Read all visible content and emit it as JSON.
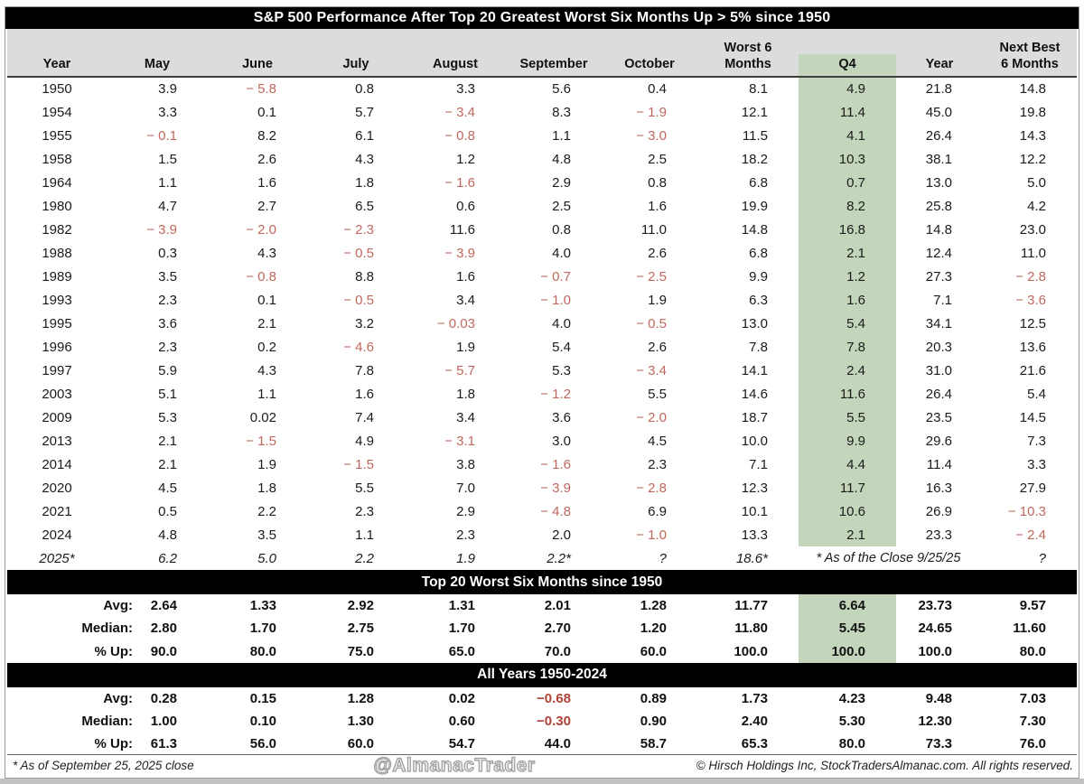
{
  "chart_data": {
    "type": "table",
    "title": "S&P 500 Performance After Top 20 Greatest Worst Six Months Up > 5% since 1950",
    "columns": [
      "Year",
      "May",
      "June",
      "July",
      "August",
      "September",
      "October",
      "Worst 6\nMonths",
      "Q4",
      "Year",
      "Next Best\n6 Months"
    ],
    "highlight_column": "Q4",
    "rows": [
      {
        "year": "1950",
        "values": [
          "3.9",
          "− 5.8",
          "0.8",
          "3.3",
          "5.6",
          "0.4",
          "8.1",
          "4.9",
          "21.8",
          "14.8"
        ]
      },
      {
        "year": "1954",
        "values": [
          "3.3",
          "0.1",
          "5.7",
          "− 3.4",
          "8.3",
          "− 1.9",
          "12.1",
          "11.4",
          "45.0",
          "19.8"
        ]
      },
      {
        "year": "1955",
        "values": [
          "− 0.1",
          "8.2",
          "6.1",
          "− 0.8",
          "1.1",
          "− 3.0",
          "11.5",
          "4.1",
          "26.4",
          "14.3"
        ]
      },
      {
        "year": "1958",
        "values": [
          "1.5",
          "2.6",
          "4.3",
          "1.2",
          "4.8",
          "2.5",
          "18.2",
          "10.3",
          "38.1",
          "12.2"
        ]
      },
      {
        "year": "1964",
        "values": [
          "1.1",
          "1.6",
          "1.8",
          "− 1.6",
          "2.9",
          "0.8",
          "6.8",
          "0.7",
          "13.0",
          "5.0"
        ]
      },
      {
        "year": "1980",
        "values": [
          "4.7",
          "2.7",
          "6.5",
          "0.6",
          "2.5",
          "1.6",
          "19.9",
          "8.2",
          "25.8",
          "4.2"
        ]
      },
      {
        "year": "1982",
        "values": [
          "− 3.9",
          "− 2.0",
          "− 2.3",
          "11.6",
          "0.8",
          "11.0",
          "14.8",
          "16.8",
          "14.8",
          "23.0"
        ]
      },
      {
        "year": "1988",
        "values": [
          "0.3",
          "4.3",
          "− 0.5",
          "− 3.9",
          "4.0",
          "2.6",
          "6.8",
          "2.1",
          "12.4",
          "11.0"
        ]
      },
      {
        "year": "1989",
        "values": [
          "3.5",
          "− 0.8",
          "8.8",
          "1.6",
          "− 0.7",
          "− 2.5",
          "9.9",
          "1.2",
          "27.3",
          "− 2.8"
        ]
      },
      {
        "year": "1993",
        "values": [
          "2.3",
          "0.1",
          "− 0.5",
          "3.4",
          "− 1.0",
          "1.9",
          "6.3",
          "1.6",
          "7.1",
          "− 3.6"
        ]
      },
      {
        "year": "1995",
        "values": [
          "3.6",
          "2.1",
          "3.2",
          "− 0.03",
          "4.0",
          "− 0.5",
          "13.0",
          "5.4",
          "34.1",
          "12.5"
        ]
      },
      {
        "year": "1996",
        "values": [
          "2.3",
          "0.2",
          "− 4.6",
          "1.9",
          "5.4",
          "2.6",
          "7.8",
          "7.8",
          "20.3",
          "13.6"
        ]
      },
      {
        "year": "1997",
        "values": [
          "5.9",
          "4.3",
          "7.8",
          "− 5.7",
          "5.3",
          "− 3.4",
          "14.1",
          "2.4",
          "31.0",
          "21.6"
        ]
      },
      {
        "year": "2003",
        "values": [
          "5.1",
          "1.1",
          "1.6",
          "1.8",
          "− 1.2",
          "5.5",
          "14.6",
          "11.6",
          "26.4",
          "5.4"
        ]
      },
      {
        "year": "2009",
        "values": [
          "5.3",
          "0.02",
          "7.4",
          "3.4",
          "3.6",
          "− 2.0",
          "18.7",
          "5.5",
          "23.5",
          "14.5"
        ]
      },
      {
        "year": "2013",
        "values": [
          "2.1",
          "− 1.5",
          "4.9",
          "− 3.1",
          "3.0",
          "4.5",
          "10.0",
          "9.9",
          "29.6",
          "7.3"
        ]
      },
      {
        "year": "2014",
        "values": [
          "2.1",
          "1.9",
          "− 1.5",
          "3.8",
          "− 1.6",
          "2.3",
          "7.1",
          "4.4",
          "11.4",
          "3.3"
        ]
      },
      {
        "year": "2020",
        "values": [
          "4.5",
          "1.8",
          "5.5",
          "7.0",
          "− 3.9",
          "− 2.8",
          "12.3",
          "11.7",
          "16.3",
          "27.9"
        ]
      },
      {
        "year": "2021",
        "values": [
          "0.5",
          "2.2",
          "2.3",
          "2.9",
          "− 4.8",
          "6.9",
          "10.1",
          "10.6",
          "26.9",
          "− 10.3"
        ]
      },
      {
        "year": "2024",
        "values": [
          "4.8",
          "3.5",
          "1.1",
          "2.3",
          "2.0",
          "− 1.0",
          "13.3",
          "2.1",
          "23.3",
          "− 2.4"
        ]
      },
      {
        "year": "2025*",
        "italic": true,
        "values": [
          "6.2",
          "5.0",
          "2.2",
          "1.9",
          "2.2*",
          "?",
          "18.6*"
        ],
        "note": "* As of the Close 9/25/25",
        "last": "?"
      }
    ],
    "sections": [
      {
        "band": "Top 20 Worst Six Months since 1950",
        "highlight_q4": true,
        "rows": [
          {
            "label": "Avg:",
            "values": [
              "2.64",
              "1.33",
              "2.92",
              "1.31",
              "2.01",
              "1.28",
              "11.77",
              "6.64",
              "23.73",
              "9.57"
            ]
          },
          {
            "label": "Median:",
            "values": [
              "2.80",
              "1.70",
              "2.75",
              "1.70",
              "2.70",
              "1.20",
              "11.80",
              "5.45",
              "24.65",
              "11.60"
            ]
          },
          {
            "label": "% Up:",
            "values": [
              "90.0",
              "80.0",
              "75.0",
              "65.0",
              "70.0",
              "60.0",
              "100.0",
              "100.0",
              "100.0",
              "80.0"
            ]
          }
        ]
      },
      {
        "band": "All Years 1950-2024",
        "highlight_q4": false,
        "rows": [
          {
            "label": "Avg:",
            "values": [
              "0.28",
              "0.15",
              "1.28",
              "0.02",
              "−0.68",
              "0.89",
              "1.73",
              "4.23",
              "9.48",
              "7.03"
            ]
          },
          {
            "label": "Median:",
            "values": [
              "1.00",
              "0.10",
              "1.30",
              "0.60",
              "−0.30",
              "0.90",
              "2.40",
              "5.30",
              "12.30",
              "7.30"
            ]
          },
          {
            "label": "% Up:",
            "values": [
              "61.3",
              "56.0",
              "60.0",
              "54.7",
              "44.0",
              "58.7",
              "65.3",
              "80.0",
              "73.3",
              "76.0"
            ]
          }
        ]
      }
    ]
  },
  "footer": {
    "left": "* As of September 25, 2025 close",
    "watermark": "@AlmanacTrader",
    "right": "© Hirsch Holdings Inc, StockTradersAlmanac.com. All rights reserved."
  },
  "colors": {
    "highlight_green": "#c3d5bb",
    "header_gray": "#dcdcdc",
    "negative_red": "#c0685d",
    "negative_bold_red": "#b04238",
    "band_black": "#000000"
  }
}
